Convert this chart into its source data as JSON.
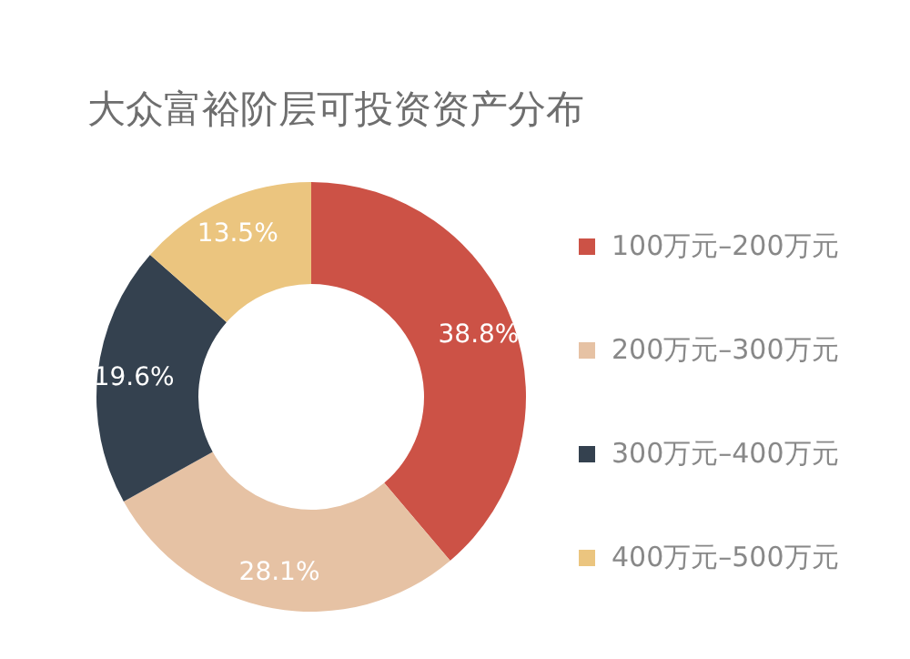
{
  "chart_data": {
    "type": "donut",
    "title": "大众富裕阶层可投资资产分布",
    "categories": [
      "100万元–200万元",
      "200万元–300万元",
      "300万元–400万元",
      "400万元–500万元"
    ],
    "values": [
      38.8,
      28.1,
      19.6,
      13.5
    ],
    "value_labels": [
      "38.8%",
      "28.1%",
      "19.6%",
      "13.5%"
    ],
    "colors": [
      "#cc5246",
      "#e6c2a4",
      "#34414f",
      "#ebc57f"
    ],
    "legend": "right"
  }
}
